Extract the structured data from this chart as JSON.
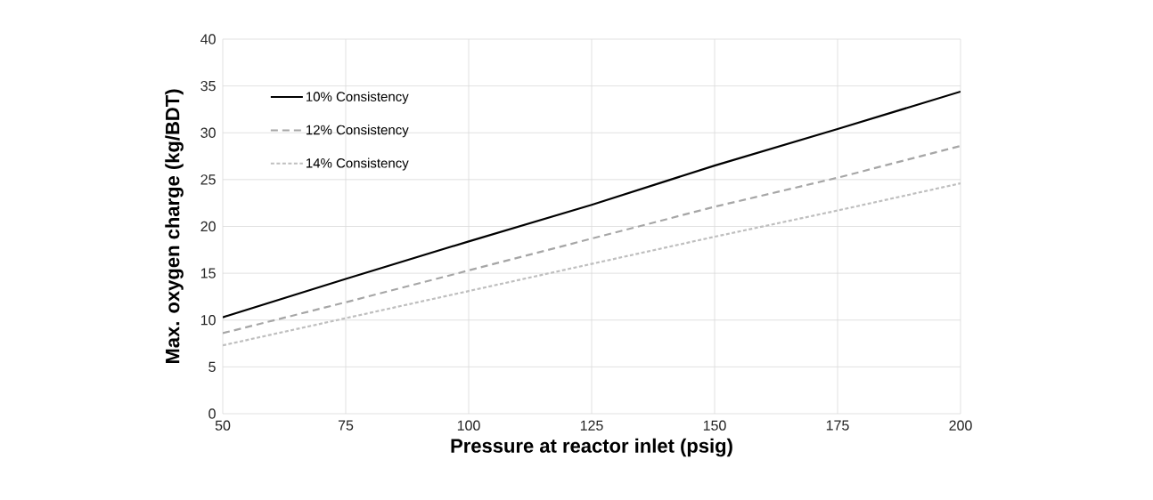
{
  "chart_data": {
    "type": "line",
    "xlabel": "Pressure at reactor inlet (psig)",
    "ylabel": "Max. oxygen charge (kg/BDT)",
    "x": [
      50,
      75,
      100,
      125,
      150,
      175,
      200
    ],
    "series": [
      {
        "name": "10% Consistency",
        "color": "#000000",
        "line_style": "solid",
        "values": [
          10.3,
          14.4,
          18.4,
          22.3,
          26.5,
          30.4,
          34.4
        ]
      },
      {
        "name": "12% Consistency",
        "color": "#a6a6a6",
        "line_style": "dashed",
        "values": [
          8.6,
          11.9,
          15.3,
          18.7,
          22.1,
          25.2,
          28.6
        ]
      },
      {
        "name": "14% Consistency",
        "color": "#bfbfbf",
        "line_style": "dotted",
        "values": [
          7.3,
          10.2,
          13.1,
          16.0,
          18.9,
          21.7,
          24.6
        ]
      }
    ],
    "xlim": [
      50,
      200
    ],
    "xticks": [
      50,
      75,
      100,
      125,
      150,
      175,
      200
    ],
    "ylim": [
      0,
      40
    ],
    "yticks": [
      0,
      5,
      10,
      15,
      20,
      25,
      30,
      35,
      40
    ],
    "grid": true,
    "legend": "top left"
  }
}
